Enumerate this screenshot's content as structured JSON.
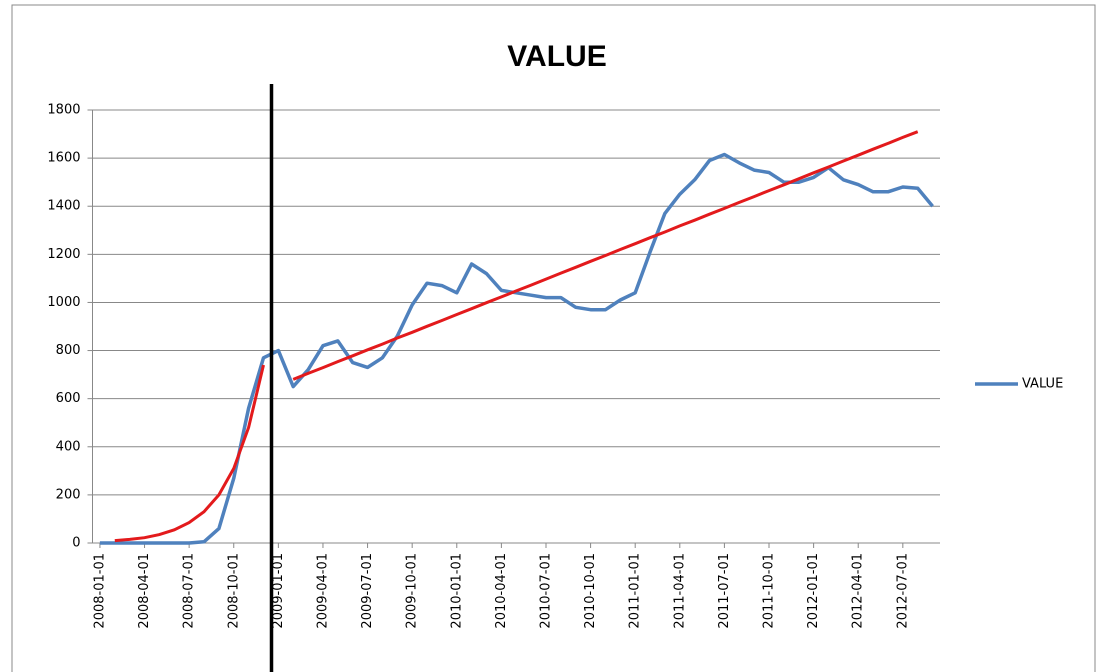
{
  "chart_data": {
    "type": "line",
    "title": "VALUE",
    "categories": [
      "2008-01-01",
      null,
      null,
      "2008-04-01",
      null,
      null,
      "2008-07-01",
      null,
      null,
      "2008-10-01",
      null,
      null,
      "2009-01-01",
      null,
      null,
      "2009-04-01",
      null,
      null,
      "2009-07-01",
      null,
      null,
      "2009-10-01",
      null,
      null,
      "2010-01-01",
      null,
      null,
      "2010-04-01",
      null,
      null,
      "2010-07-01",
      null,
      null,
      "2010-10-01",
      null,
      null,
      "2011-01-01",
      null,
      null,
      "2011-04-01",
      null,
      null,
      "2011-07-01",
      null,
      null,
      "2011-10-01",
      null,
      null,
      "2012-01-01",
      null,
      null,
      "2012-04-01",
      null,
      null,
      "2012-07-01",
      null,
      null
    ],
    "series": [
      {
        "name": "VALUE",
        "color": "#4f81bd",
        "values": [
          0,
          0,
          0,
          0,
          0,
          0,
          0,
          5,
          60,
          270,
          560,
          770,
          800,
          650,
          720,
          820,
          840,
          750,
          730,
          770,
          860,
          990,
          1080,
          1070,
          1040,
          1160,
          1120,
          1050,
          1040,
          1030,
          1020,
          1020,
          980,
          970,
          970,
          1010,
          1040,
          1210,
          1370,
          1450,
          1510,
          1590,
          1615,
          1580,
          1550,
          1540,
          1500,
          1500,
          1520,
          1560,
          1510,
          1490,
          1460,
          1460,
          1480,
          1475,
          1400
        ]
      }
    ],
    "trendlines": [
      {
        "color": "#e31a1c",
        "values": [
          null,
          10,
          15,
          22,
          35,
          55,
          85,
          130,
          200,
          310,
          480,
          740,
          null,
          null,
          null,
          null,
          null,
          null,
          null,
          null,
          null,
          null,
          null,
          null,
          null,
          null,
          null,
          null,
          null,
          null,
          null,
          null,
          null,
          null,
          null,
          null,
          null,
          null,
          null,
          null,
          null,
          null,
          null,
          null,
          null,
          null,
          null,
          null,
          null,
          null,
          null,
          null,
          null,
          null,
          null,
          null,
          null
        ]
      },
      {
        "color": "#e31a1c",
        "values": [
          null,
          null,
          null,
          null,
          null,
          null,
          null,
          null,
          null,
          null,
          null,
          null,
          null,
          680,
          705,
          729,
          754,
          778,
          803,
          827,
          852,
          876,
          901,
          925,
          950,
          974,
          999,
          1023,
          1048,
          1072,
          1097,
          1122,
          1146,
          1171,
          1195,
          1220,
          1244,
          1269,
          1293,
          1318,
          1342,
          1367,
          1391,
          1416,
          1440,
          1465,
          1489,
          1514,
          1539,
          1563,
          1588,
          1612,
          1637,
          1661,
          1686,
          1710,
          null
        ]
      }
    ],
    "ylim": [
      0,
      1800
    ],
    "yticks": [
      0,
      200,
      400,
      600,
      800,
      1000,
      1200,
      1400,
      1600,
      1800
    ],
    "grid": true,
    "legend": "right"
  }
}
